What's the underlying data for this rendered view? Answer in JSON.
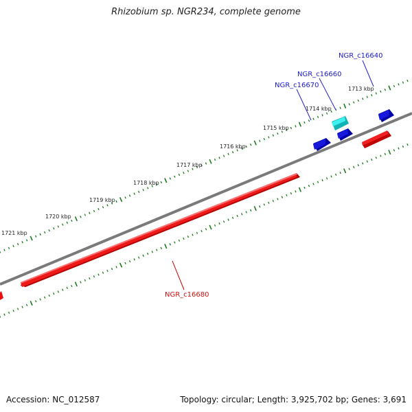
{
  "title": "Rhizobium sp. NGR234, complete genome",
  "footer": {
    "accession": "Accession: NC_012587",
    "summary": "Topology: circular; Length: 3,925,702 bp; Genes: 3,691"
  },
  "colors": {
    "backbone": "#7a7a7a",
    "forward_gene": "#1010cc",
    "forward_gene_highlight": "#28dede",
    "reverse_gene": "#e81010",
    "ticks": "#1a7a1a"
  },
  "scale_labels": [
    "1713 kbp",
    "1714 kbp",
    "1715 kbp",
    "1716 kbp",
    "1717 kbp",
    "1718 kbp",
    "1719 kbp",
    "1720 kbp",
    "1721 kbp"
  ],
  "genes": [
    {
      "id": "NGR_c16640",
      "strand": "forward"
    },
    {
      "id": "NGR_c16660",
      "strand": "forward",
      "highlight": true
    },
    {
      "id": "NGR_c16670",
      "strand": "forward"
    },
    {
      "id": "NGR_c16680",
      "strand": "reverse"
    }
  ]
}
